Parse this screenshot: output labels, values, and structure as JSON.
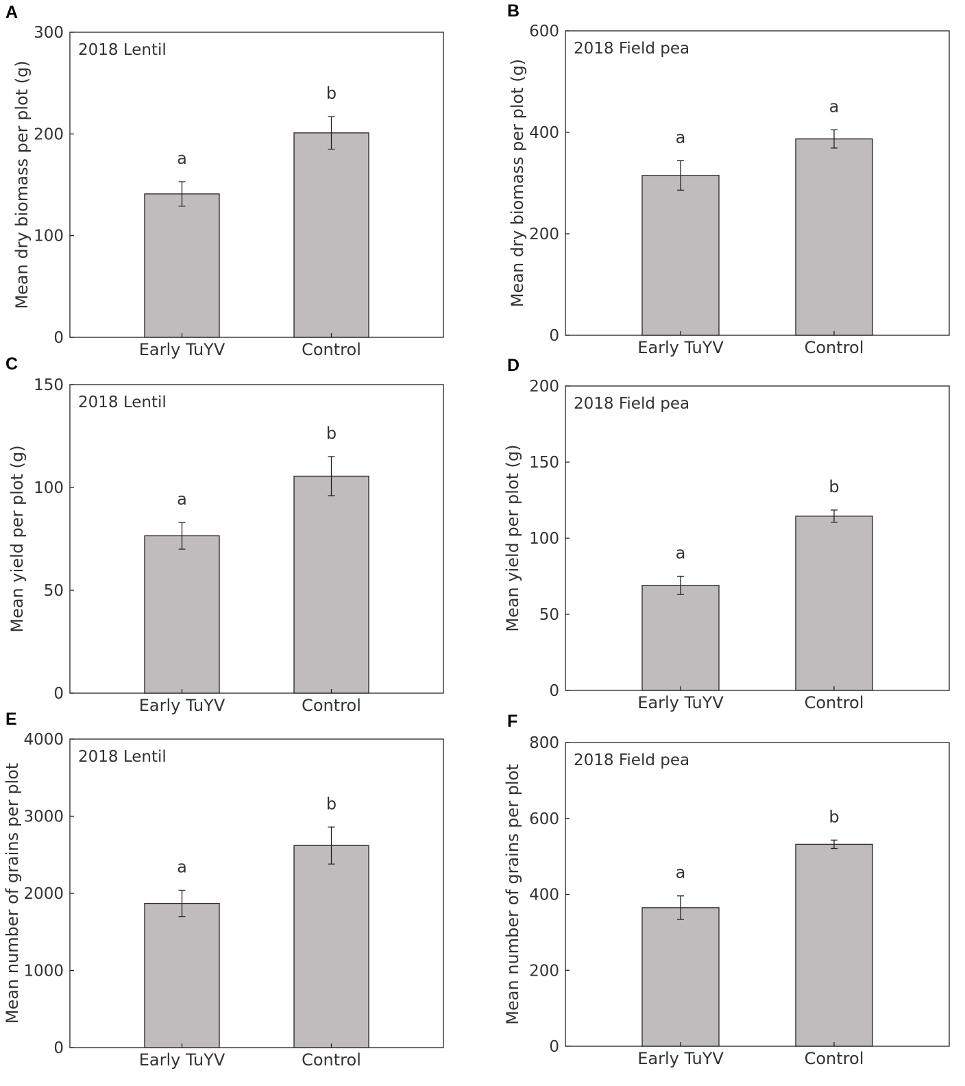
{
  "colors": {
    "bar_fill": "#c0bcbd",
    "bar_stroke": "#222222",
    "axis": "#222222",
    "text": "#333333"
  },
  "chart_data": [
    {
      "panel": "A",
      "type": "bar",
      "title": "2018 Lentil",
      "xlabel": "",
      "ylabel": "Mean dry biomass per plot (g)",
      "ylim": [
        0,
        300
      ],
      "yticks": [
        "0",
        "100",
        "200",
        "300"
      ],
      "categories": [
        "Early TuYV",
        "Control"
      ],
      "values": [
        141,
        201
      ],
      "errors": [
        12,
        16
      ],
      "significance": [
        "a",
        "b"
      ]
    },
    {
      "panel": "B",
      "type": "bar",
      "title": "2018 Field pea",
      "xlabel": "",
      "ylabel": "Mean dry biomass per plot (g)",
      "ylim": [
        0,
        600
      ],
      "yticks": [
        "0",
        "200",
        "400",
        "600"
      ],
      "categories": [
        "Early TuYV",
        "Control"
      ],
      "values": [
        315,
        387
      ],
      "errors": [
        29,
        18
      ],
      "significance": [
        "a",
        "a"
      ]
    },
    {
      "panel": "C",
      "type": "bar",
      "title": "2018 Lentil",
      "xlabel": "",
      "ylabel": "Mean yield per plot (g)",
      "ylim": [
        0,
        150
      ],
      "yticks": [
        "0",
        "50",
        "100",
        "150"
      ],
      "categories": [
        "Early TuYV",
        "Control"
      ],
      "values": [
        76.5,
        105.5
      ],
      "errors": [
        6.5,
        9.5
      ],
      "significance": [
        "a",
        "b"
      ]
    },
    {
      "panel": "D",
      "type": "bar",
      "title": "2018 Field pea",
      "xlabel": "",
      "ylabel": "Mean yield per plot (g)",
      "ylim": [
        0,
        200
      ],
      "yticks": [
        "0",
        "50",
        "100",
        "150",
        "200"
      ],
      "categories": [
        "Early TuYV",
        "Control"
      ],
      "values": [
        69,
        114.5
      ],
      "errors": [
        6,
        4
      ],
      "significance": [
        "a",
        "b"
      ]
    },
    {
      "panel": "E",
      "type": "bar",
      "title": "2018 Lentil",
      "xlabel": "",
      "ylabel": "Mean number of grains per plot",
      "ylim": [
        0,
        4000
      ],
      "yticks": [
        "0",
        "1000",
        "2000",
        "3000",
        "4000"
      ],
      "categories": [
        "Early TuYV",
        "Control"
      ],
      "values": [
        1870,
        2620
      ],
      "errors": [
        170,
        240
      ],
      "significance": [
        "a",
        "b"
      ]
    },
    {
      "panel": "F",
      "type": "bar",
      "title": "2018 Field pea",
      "xlabel": "",
      "ylabel": "Mean number of grains per plot",
      "ylim": [
        0,
        800
      ],
      "yticks": [
        "0",
        "200",
        "400",
        "600",
        "800"
      ],
      "categories": [
        "Early TuYV",
        "Control"
      ],
      "values": [
        365,
        532
      ],
      "errors": [
        31,
        11
      ],
      "significance": [
        "a",
        "b"
      ]
    }
  ]
}
